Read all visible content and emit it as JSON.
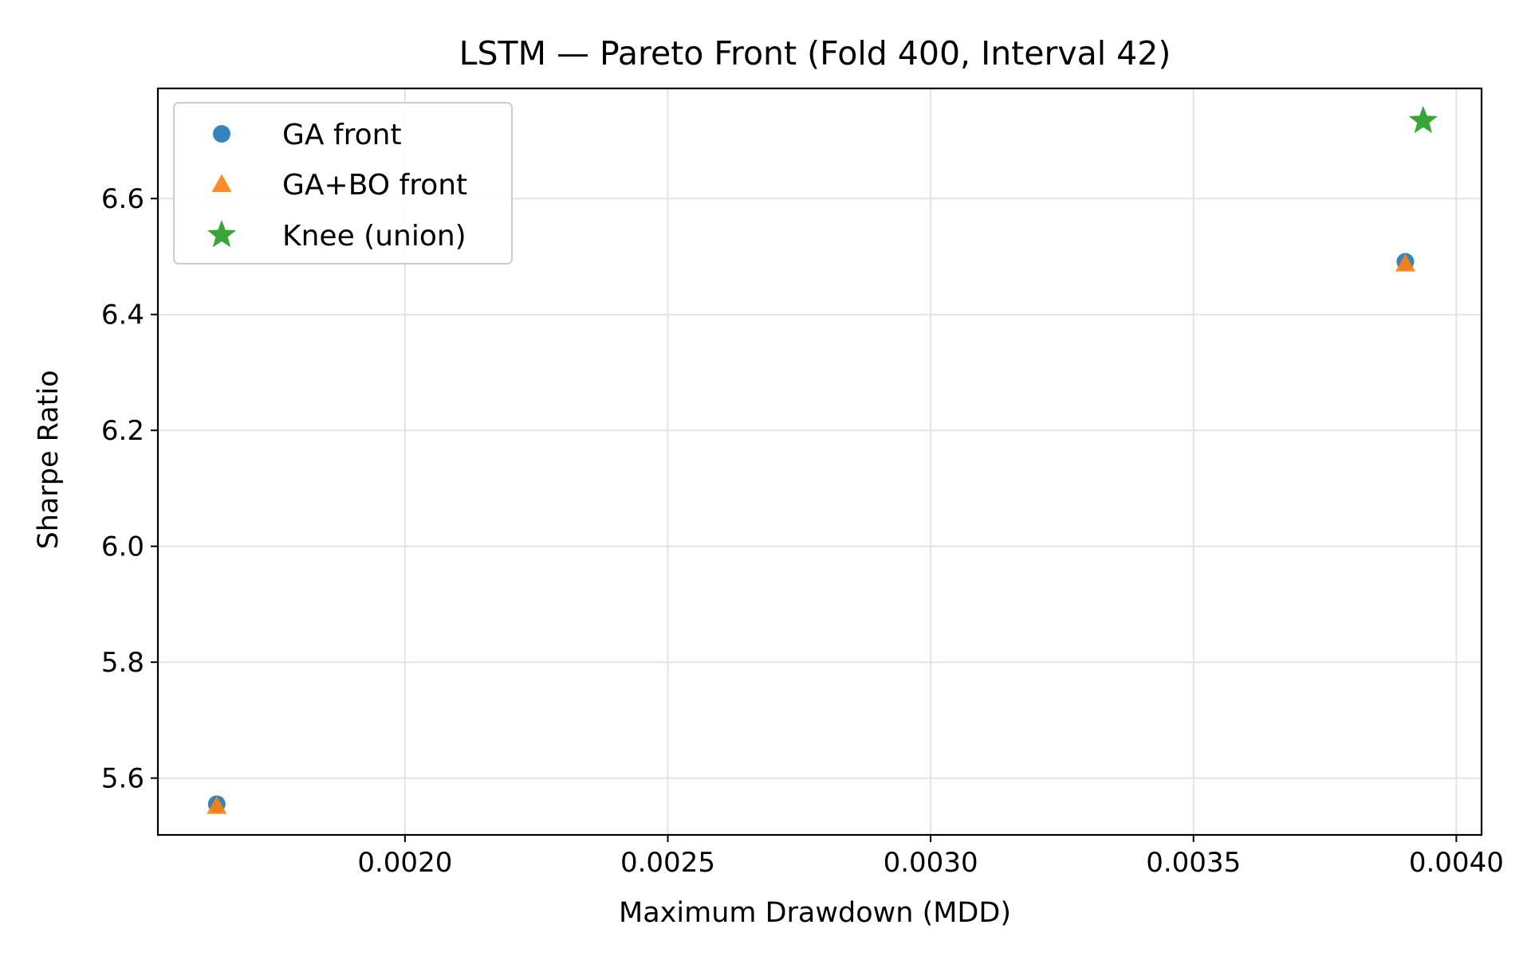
{
  "chart_data": {
    "type": "scatter",
    "title": "LSTM — Pareto Front (Fold 400, Interval 42)",
    "xlabel": "Maximum Drawdown (MDD)",
    "ylabel": "Sharpe Ratio",
    "xlim": [
      0.00153,
      0.004048
    ],
    "ylim": [
      5.502,
      6.79
    ],
    "xticks": [
      0.002,
      0.0025,
      0.003,
      0.0035,
      0.004
    ],
    "xtick_labels": [
      "0.0020",
      "0.0025",
      "0.0030",
      "0.0035",
      "0.0040"
    ],
    "yticks": [
      5.6,
      5.8,
      6.0,
      6.2,
      6.4,
      6.6
    ],
    "ytick_labels": [
      "5.6",
      "5.8",
      "6.0",
      "6.2",
      "6.4",
      "6.6"
    ],
    "grid": true,
    "legend_position": "upper-left",
    "series": [
      {
        "name": "GA front",
        "marker": "circle",
        "color": "#1f77b4",
        "points": [
          {
            "x": 0.001642,
            "y": 5.555
          },
          {
            "x": 0.003903,
            "y": 6.491
          }
        ]
      },
      {
        "name": "GA+BO front",
        "marker": "triangle",
        "color": "#ff7f0e",
        "points": [
          {
            "x": 0.001642,
            "y": 5.552
          },
          {
            "x": 0.003903,
            "y": 6.488
          }
        ]
      },
      {
        "name": "Knee (union)",
        "marker": "star",
        "color": "#2ca02c",
        "points": [
          {
            "x": 0.003937,
            "y": 6.734
          }
        ]
      }
    ]
  }
}
